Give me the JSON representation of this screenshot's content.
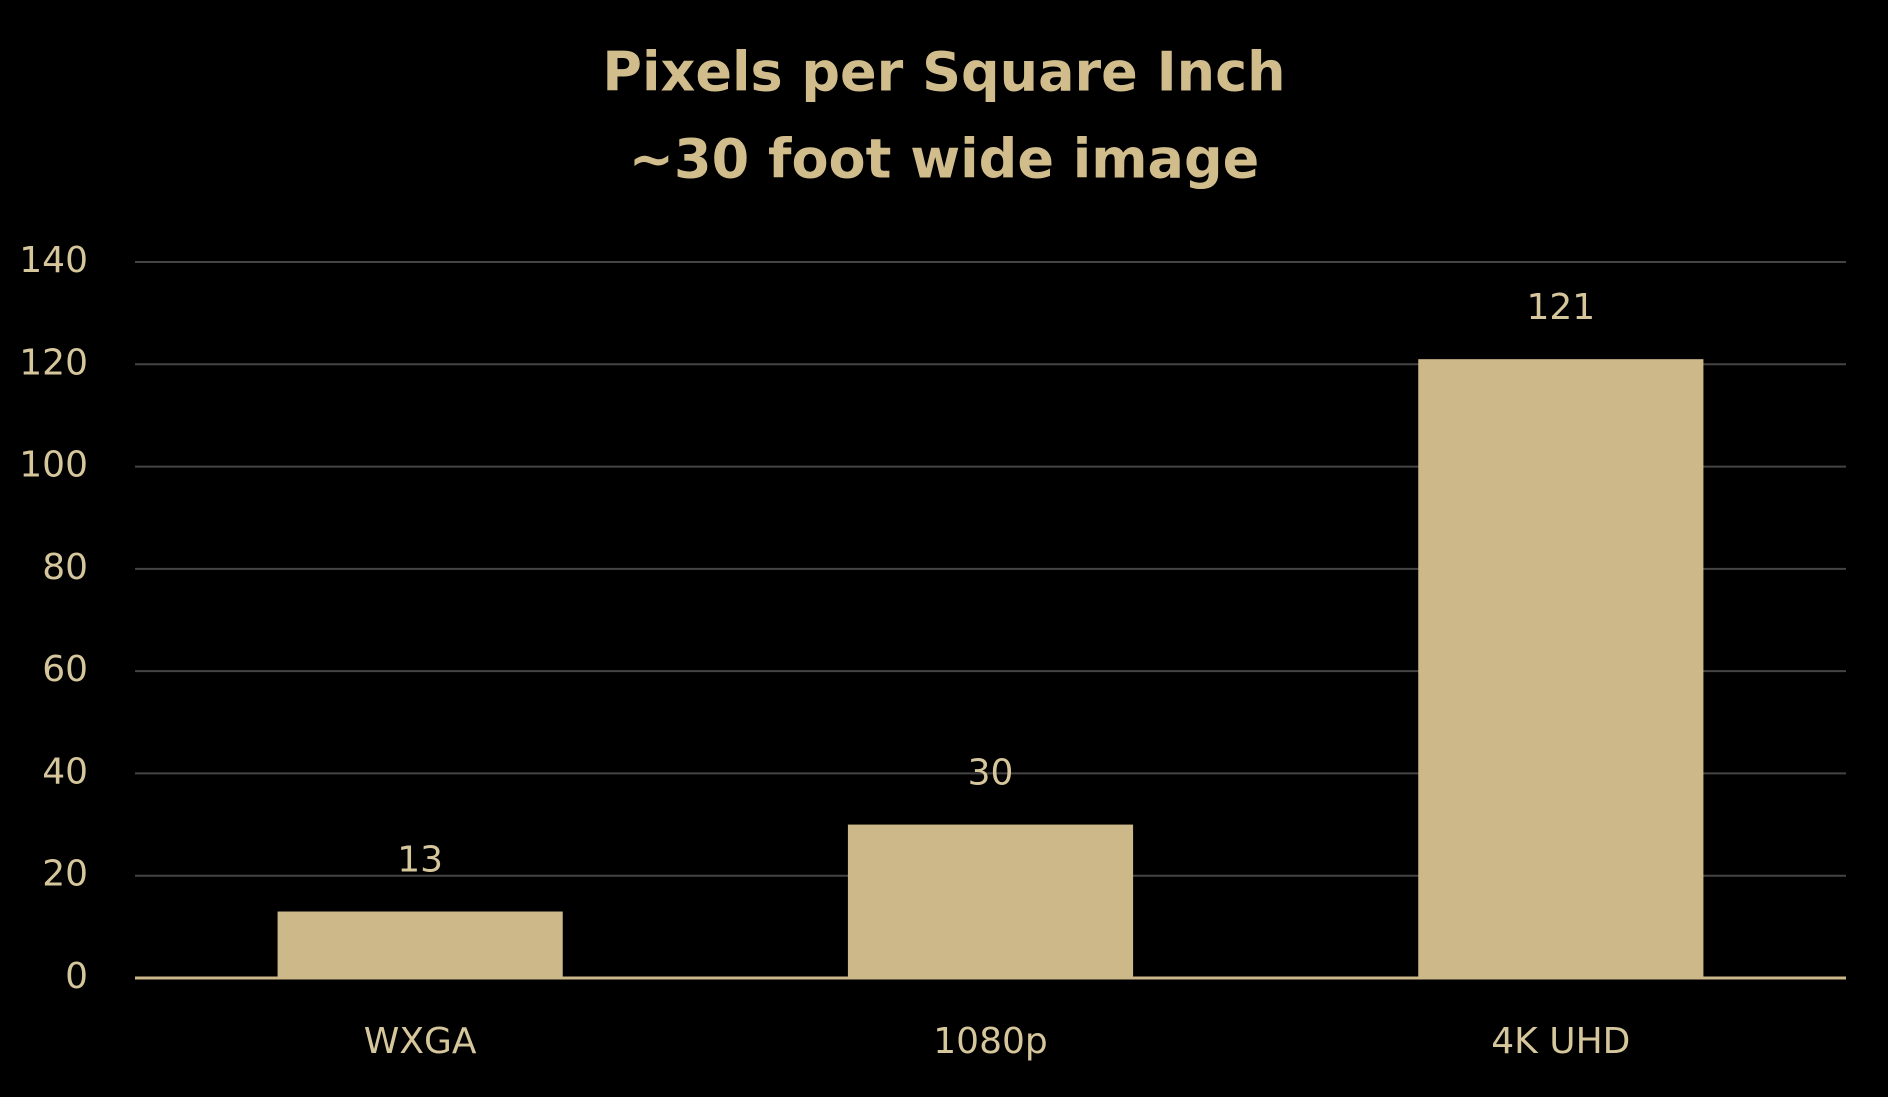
{
  "chart_data": {
    "type": "bar",
    "title": "Pixels per Square Inch",
    "subtitle": "~30 foot wide image",
    "categories": [
      "WXGA",
      "1080p",
      "4K UHD"
    ],
    "values": [
      13,
      30,
      121
    ],
    "color": "#cdb88a",
    "ylim": [
      0,
      140
    ],
    "yticks": [
      0,
      20,
      40,
      60,
      80,
      100,
      120,
      140
    ],
    "grid": true
  }
}
